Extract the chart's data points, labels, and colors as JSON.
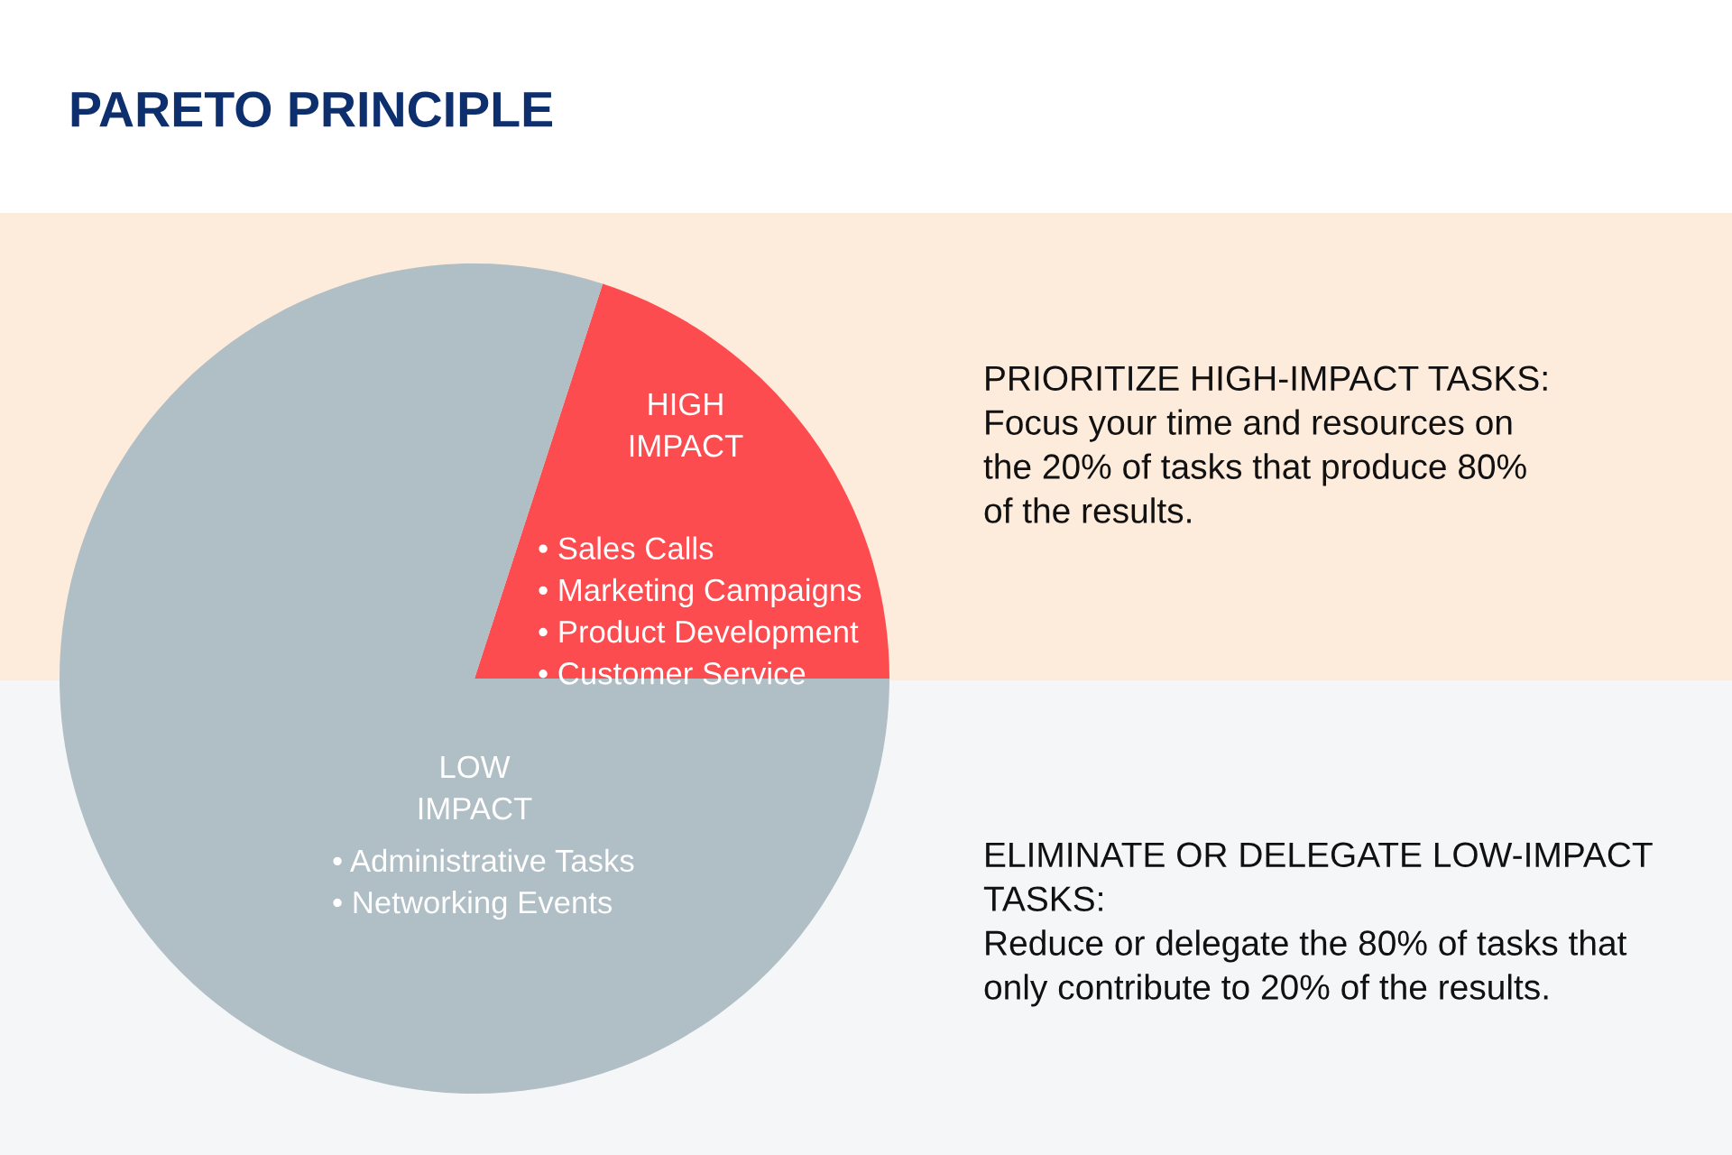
{
  "chart_data": {
    "type": "pie",
    "title": "PARETO PRINCIPLE",
    "categories": [
      "HIGH\nIMPACT",
      "LOW\nIMPACT"
    ],
    "values": [
      20,
      80
    ],
    "colors": [
      "#fd4c4f",
      "#b0bec5"
    ],
    "annotations": [
      "• Sales Calls\n• Marketing Campaigns\n• Product Development\n• Customer Service",
      "• Administrative Tasks\n• Networking Events",
      "PRIORITIZE HIGH-IMPACT TASKS:\nFocus your time and resources on\nthe 20% of tasks that produce 80%\nof the results.",
      "ELIMINATE OR DELEGATE LOW-IMPACT\nTASKS:\nReduce or delegate the 80% of tasks that\nonly contribute to 20% of the results."
    ]
  }
}
